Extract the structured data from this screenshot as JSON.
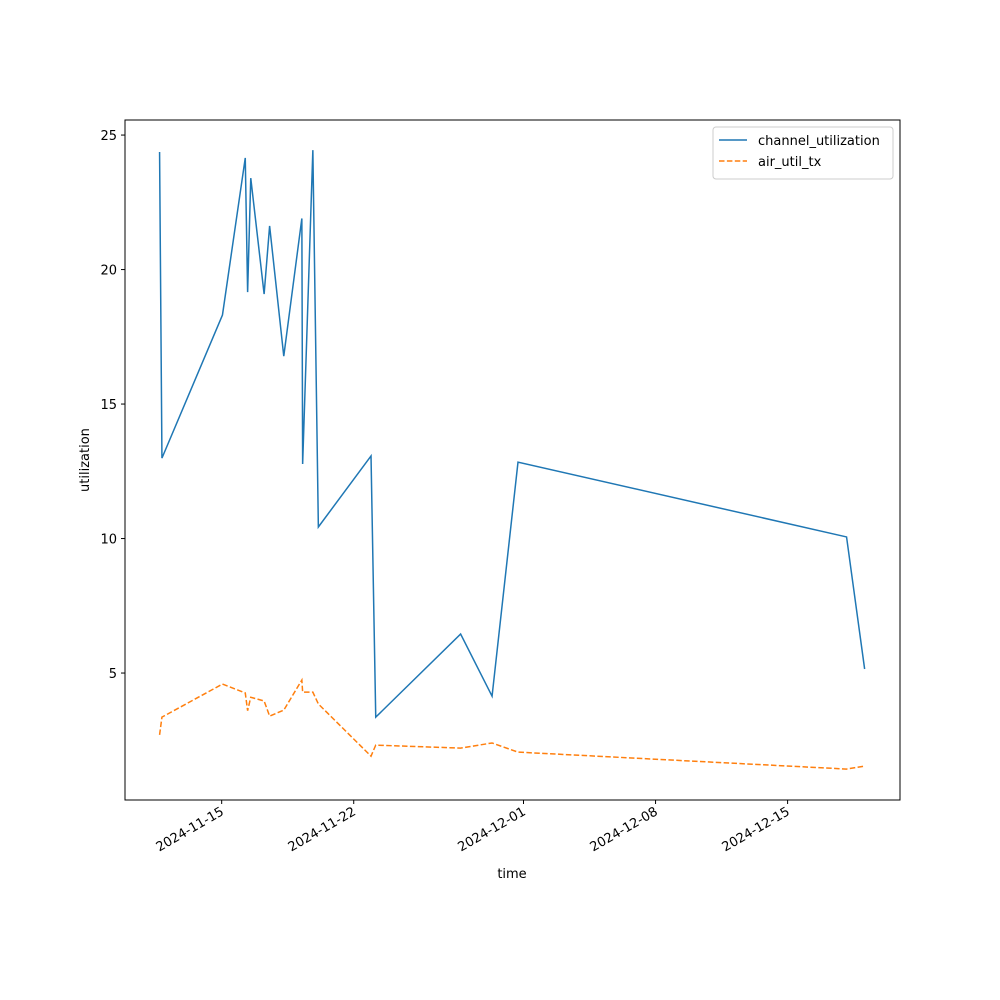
{
  "chart_data": {
    "type": "line",
    "xlabel": "time",
    "ylabel": "utilization",
    "x": [
      "2024-11-11T17:00",
      "2024-11-11T20:00",
      "2024-11-15T01:00",
      "2024-11-16T06:00",
      "2024-11-16T09:00",
      "2024-11-16T13:00",
      "2024-11-17T06:00",
      "2024-11-17T13:00",
      "2024-11-18T07:00",
      "2024-11-19T06:00",
      "2024-11-19T07:00",
      "2024-11-19T20:00",
      "2024-11-20T03:00",
      "2024-11-22T22:00",
      "2024-11-23T04:00",
      "2024-11-27T16:00",
      "2024-11-29T08:00",
      "2024-11-30T17:00",
      "2024-12-18T03:00",
      "2024-12-19T02:00"
    ],
    "series": [
      {
        "name": "channel_utilization",
        "color": "#1f77b4",
        "linestyle": "solid",
        "values": [
          24.37,
          12.99,
          18.31,
          24.15,
          19.16,
          23.4,
          19.09,
          21.62,
          16.78,
          21.9,
          12.77,
          24.44,
          10.43,
          13.07,
          3.36,
          6.45,
          4.14,
          12.84,
          10.06,
          5.15
        ]
      },
      {
        "name": "air_util_tx",
        "color": "#ff7f0e",
        "linestyle": "dashed",
        "values": [
          2.7,
          3.36,
          4.59,
          4.26,
          3.6,
          4.1,
          3.96,
          3.4,
          3.62,
          4.74,
          4.29,
          4.29,
          3.85,
          1.91,
          2.32,
          2.21,
          2.4,
          2.06,
          1.43,
          1.54
        ]
      }
    ],
    "xlim": [
      "2024-11-09T21:00",
      "2024-12-20T23:00"
    ],
    "xticks": [
      "2024-11-15",
      "2024-11-22",
      "2024-12-01",
      "2024-12-08",
      "2024-12-15"
    ],
    "ylim": [
      0.28,
      25.56
    ],
    "yticks": [
      5,
      10,
      15,
      20,
      25
    ],
    "legend": "upper right"
  }
}
